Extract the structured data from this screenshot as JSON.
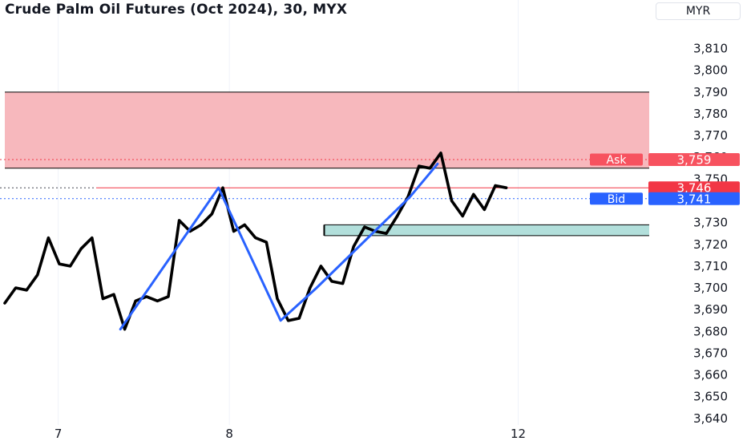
{
  "header": {
    "title": "Crude Palm Oil Futures (Oct 2024), 30, MYX",
    "currency": "MYR"
  },
  "colors": {
    "price_line": "#000000",
    "zigzag": "#2962ff",
    "supply_zone": "#f7b8bd",
    "demand_zone": "#b2dfdb",
    "ask": "#f23645",
    "ask_label_bg": "#f7525f",
    "bid": "#2962ff",
    "grid": "#f0f3fa"
  },
  "chart_data": {
    "type": "line",
    "ylim": [
      3637,
      3822
    ],
    "y_ticks": [
      3640,
      3650,
      3660,
      3670,
      3680,
      3690,
      3700,
      3710,
      3720,
      3730,
      3750,
      3760,
      3770,
      3780,
      3790,
      3800,
      3810
    ],
    "y_tick_labels": [
      "3,640",
      "3,650",
      "3,660",
      "3,670",
      "3,680",
      "3,690",
      "3,700",
      "3,710",
      "3,720",
      "3,730",
      "3,750",
      "3,760",
      "3,770",
      "3,780",
      "3,790",
      "3,800",
      "3,810"
    ],
    "xlim": [
      0,
      58
    ],
    "x_ticks": [
      {
        "x": 4.9,
        "label": "7"
      },
      {
        "x": 20.6,
        "label": "8"
      },
      {
        "x": 47.1,
        "label": "12"
      }
    ],
    "series": [
      {
        "style": "price",
        "x": [
          0,
          1,
          2,
          3,
          4,
          5,
          6,
          7,
          8,
          9,
          10,
          11,
          12,
          13,
          14,
          15,
          16,
          17,
          18,
          19,
          20,
          21,
          22,
          23,
          24,
          25,
          26,
          27,
          28,
          29,
          30,
          31,
          32,
          33,
          34,
          35,
          36,
          37,
          38,
          39,
          40,
          41,
          42,
          43,
          44,
          45,
          46
        ],
        "values": [
          3693,
          3700,
          3699,
          3706,
          3723,
          3711,
          3710,
          3718,
          3723,
          3695,
          3697,
          3681,
          3694,
          3696,
          3694,
          3696,
          3731,
          3726,
          3729,
          3734,
          3746,
          3726,
          3729,
          3723,
          3721,
          3695,
          3685,
          3686,
          3700,
          3710,
          3703,
          3702,
          3719,
          3728,
          3726,
          3725,
          3733,
          3742,
          3756,
          3755,
          3762,
          3740,
          3733,
          3743,
          3736,
          3747,
          3746
        ]
      },
      {
        "style": "zigzag",
        "x": [
          10.6,
          19.6,
          25.3,
          28.6,
          37.2,
          39.7
        ],
        "values": [
          3681,
          3746,
          3685,
          3700,
          3742,
          3757
        ]
      }
    ],
    "zones": [
      {
        "kind": "supply",
        "x_start": 0,
        "y_low": 3755,
        "y_high": 3790
      },
      {
        "kind": "demand",
        "x_start": 29.3,
        "y_low": 3724,
        "y_high": 3729
      }
    ],
    "levels": [
      {
        "kind": "ask",
        "label": "Ask",
        "value": 3759,
        "value_label": "3,759"
      },
      {
        "kind": "last",
        "label": "",
        "value": 3746,
        "value_label": "3,746"
      },
      {
        "kind": "bid",
        "label": "Bid",
        "value": 3741,
        "value_label": "3,741"
      }
    ]
  }
}
